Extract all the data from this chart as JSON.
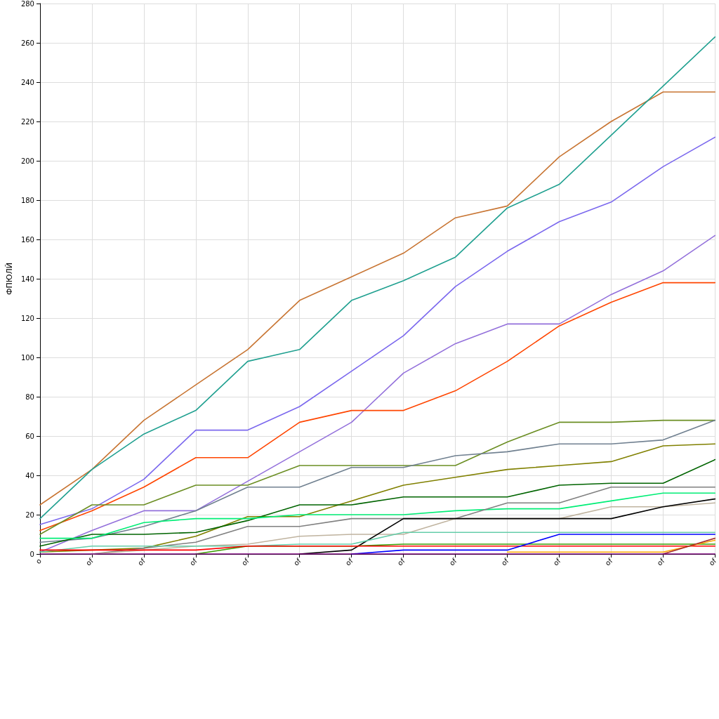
{
  "chart_data": {
    "type": "line",
    "ylabel": "ФПЮЛЙ",
    "categories": [
      "o",
      "of",
      "of",
      "of",
      "of",
      "of",
      "of",
      "of",
      "of",
      "of",
      "of",
      "of",
      "of",
      "of"
    ],
    "ylim": [
      0,
      280
    ],
    "yticks": [
      0,
      20,
      40,
      60,
      80,
      100,
      120,
      140,
      160,
      180,
      200,
      220,
      240,
      260,
      280
    ],
    "grid": true,
    "marker": "none",
    "line_style": "solid",
    "series": [
      {
        "color": "#c87533",
        "values": [
          25,
          43,
          68,
          86,
          104,
          129,
          141,
          153,
          171,
          177,
          202,
          220,
          235,
          235
        ]
      },
      {
        "color": "#20a090",
        "values": [
          18,
          43,
          61,
          73,
          98,
          104,
          129,
          139,
          151,
          176,
          188,
          213,
          238,
          263
        ]
      },
      {
        "color": "#7b68ee",
        "values": [
          15,
          23,
          38,
          63,
          63,
          75,
          93,
          111,
          136,
          154,
          169,
          179,
          197,
          212
        ]
      },
      {
        "color": "#9370db",
        "values": [
          1,
          12,
          22,
          22,
          37,
          52,
          67,
          92,
          107,
          117,
          117,
          132,
          144,
          162
        ]
      },
      {
        "color": "#ff4500",
        "values": [
          12,
          22,
          34,
          49,
          49,
          67,
          73,
          73,
          83,
          98,
          116,
          128,
          138,
          138
        ]
      },
      {
        "color": "#6b8e23",
        "values": [
          10,
          25,
          25,
          35,
          35,
          45,
          45,
          45,
          45,
          57,
          67,
          67,
          68,
          68
        ]
      },
      {
        "color": "#708090",
        "values": [
          6,
          8,
          14,
          22,
          34,
          34,
          44,
          44,
          50,
          52,
          56,
          56,
          58,
          68
        ]
      },
      {
        "color": "#808000",
        "values": [
          1,
          2,
          3,
          9,
          19,
          19,
          27,
          35,
          39,
          43,
          45,
          47,
          55,
          56
        ]
      },
      {
        "color": "#006400",
        "values": [
          4,
          10,
          10,
          11,
          17,
          25,
          25,
          29,
          29,
          29,
          35,
          36,
          36,
          48
        ]
      },
      {
        "color": "#00ee76",
        "values": [
          8,
          8,
          16,
          18,
          18,
          20,
          20,
          20,
          22,
          23,
          23,
          27,
          31,
          31
        ]
      },
      {
        "color": "#808080",
        "values": [
          null,
          0,
          3,
          6,
          14,
          14,
          18,
          18,
          18,
          26,
          26,
          34,
          34,
          34
        ]
      },
      {
        "color": "#c0b4a0",
        "values": [
          null,
          0,
          2,
          4,
          5,
          9,
          10,
          10,
          18,
          18,
          18,
          24,
          24,
          26
        ]
      },
      {
        "color": "#000000",
        "values": [
          null,
          null,
          null,
          null,
          null,
          0,
          2,
          18,
          18,
          18,
          18,
          18,
          24,
          28
        ]
      },
      {
        "color": "#66cdaa",
        "values": [
          1,
          4,
          4,
          4,
          4,
          5,
          5,
          11,
          11,
          11,
          11,
          11,
          11,
          11
        ]
      },
      {
        "color": "#3a9a00",
        "values": [
          null,
          null,
          null,
          0,
          4,
          4,
          4,
          5,
          5,
          5,
          5,
          5,
          5,
          5
        ]
      },
      {
        "color": "#ff0000",
        "values": [
          2,
          2,
          2,
          2,
          4,
          4,
          4,
          4,
          4,
          4,
          4,
          4,
          4,
          4
        ]
      },
      {
        "color": "#0000ff",
        "values": [
          null,
          null,
          null,
          null,
          null,
          null,
          0,
          2,
          2,
          2,
          10,
          10,
          10,
          10
        ]
      },
      {
        "color": "#ffa500",
        "values": [
          null,
          null,
          null,
          null,
          null,
          null,
          null,
          null,
          null,
          1,
          1,
          1,
          1,
          7
        ]
      },
      {
        "color": "#a52a2a",
        "values": [
          null,
          null,
          null,
          null,
          null,
          null,
          null,
          null,
          null,
          null,
          null,
          null,
          0,
          8
        ]
      },
      {
        "color": "#800080",
        "values": [
          0,
          0,
          0,
          0,
          0,
          0,
          0,
          0,
          0,
          0,
          0,
          0,
          0,
          0
        ]
      }
    ]
  }
}
